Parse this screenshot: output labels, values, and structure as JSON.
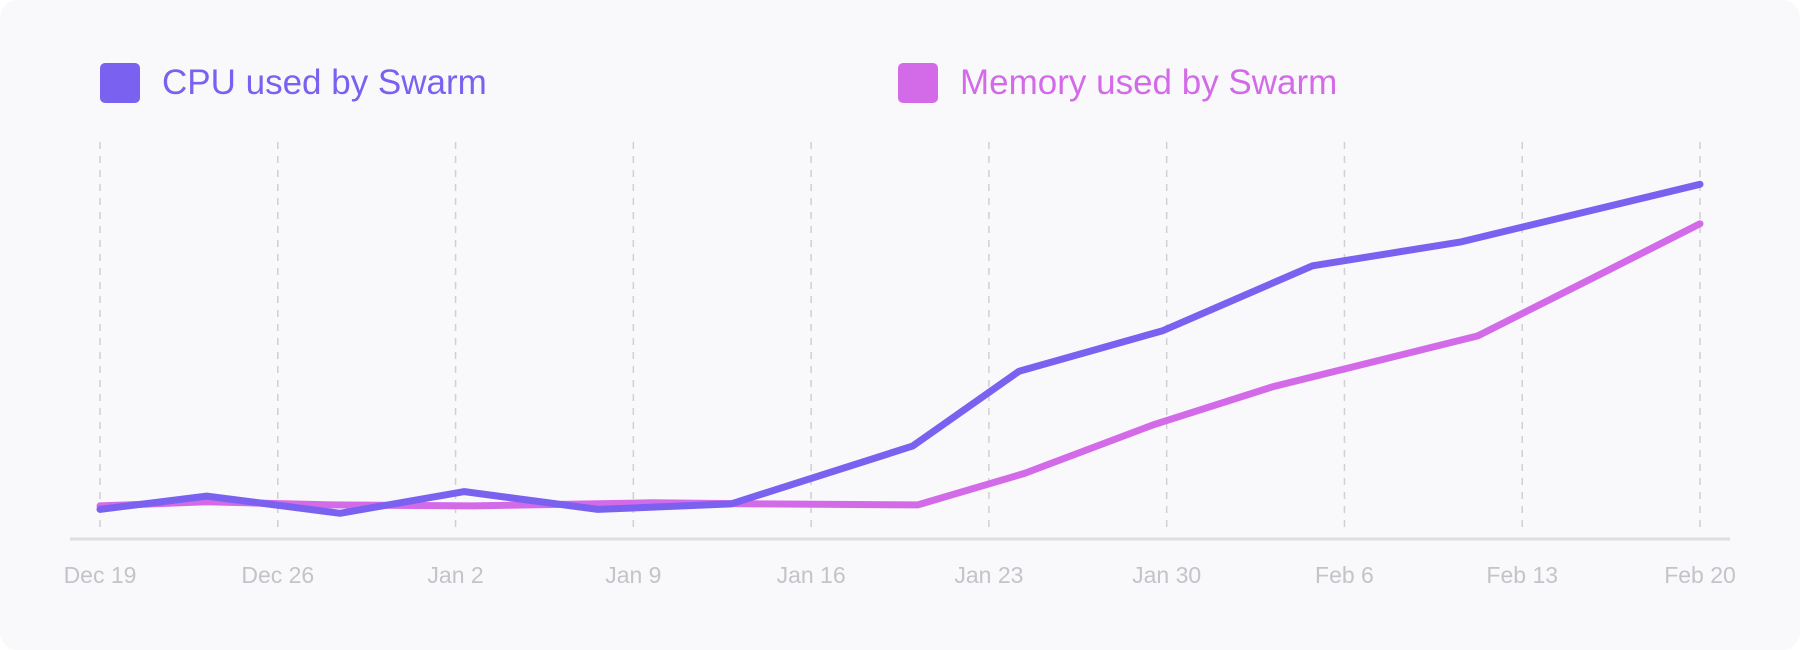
{
  "chart_data": {
    "type": "line",
    "x": [
      "Dec 19",
      "Dec 26",
      "Jan 2",
      "Jan 9",
      "Jan 16",
      "Jan 23",
      "Jan 30",
      "Feb 6",
      "Feb 13",
      "Feb 20"
    ],
    "ylim": [
      0,
      100
    ],
    "grid": "vertical dashed",
    "legend": "top",
    "series": [
      {
        "name": "CPU used by Swarm",
        "color": "#7b61ef",
        "points": [
          {
            "x": 0,
            "y": 1.3
          },
          {
            "x": 0.6,
            "y": 5.1
          },
          {
            "x": 1.35,
            "y": 0.2
          },
          {
            "x": 2.05,
            "y": 6.4
          },
          {
            "x": 2.8,
            "y": 1.3
          },
          {
            "x": 3.55,
            "y": 2.9
          },
          {
            "x": 4.57,
            "y": 19.4
          },
          {
            "x": 5.17,
            "y": 40.8
          },
          {
            "x": 5.98,
            "y": 52.4
          },
          {
            "x": 6.82,
            "y": 70.9
          },
          {
            "x": 7.65,
            "y": 77.7
          },
          {
            "x": 9,
            "y": 94.2
          }
        ]
      },
      {
        "name": "Memory used by Swarm",
        "color": "#d36be9",
        "points": [
          {
            "x": 0,
            "y": 2.3
          },
          {
            "x": 0.6,
            "y": 3.5
          },
          {
            "x": 1.3,
            "y": 2.6
          },
          {
            "x": 2.1,
            "y": 2.3
          },
          {
            "x": 3.1,
            "y": 3.2
          },
          {
            "x": 3.7,
            "y": 2.9
          },
          {
            "x": 4.6,
            "y": 2.6
          },
          {
            "x": 5.2,
            "y": 11.6
          },
          {
            "x": 5.92,
            "y": 25.4
          },
          {
            "x": 6.6,
            "y": 36.4
          },
          {
            "x": 7.75,
            "y": 50.9
          },
          {
            "x": 8.45,
            "y": 68.8
          },
          {
            "x": 9,
            "y": 82.9
          }
        ]
      }
    ]
  },
  "colors": {
    "cpu": "#7b61ef",
    "memory": "#d36be9",
    "grid": "#cfcfd4",
    "axis": "#dddde2",
    "tick_label": "#c3c3c9",
    "card_background": "#f9f9fb"
  }
}
